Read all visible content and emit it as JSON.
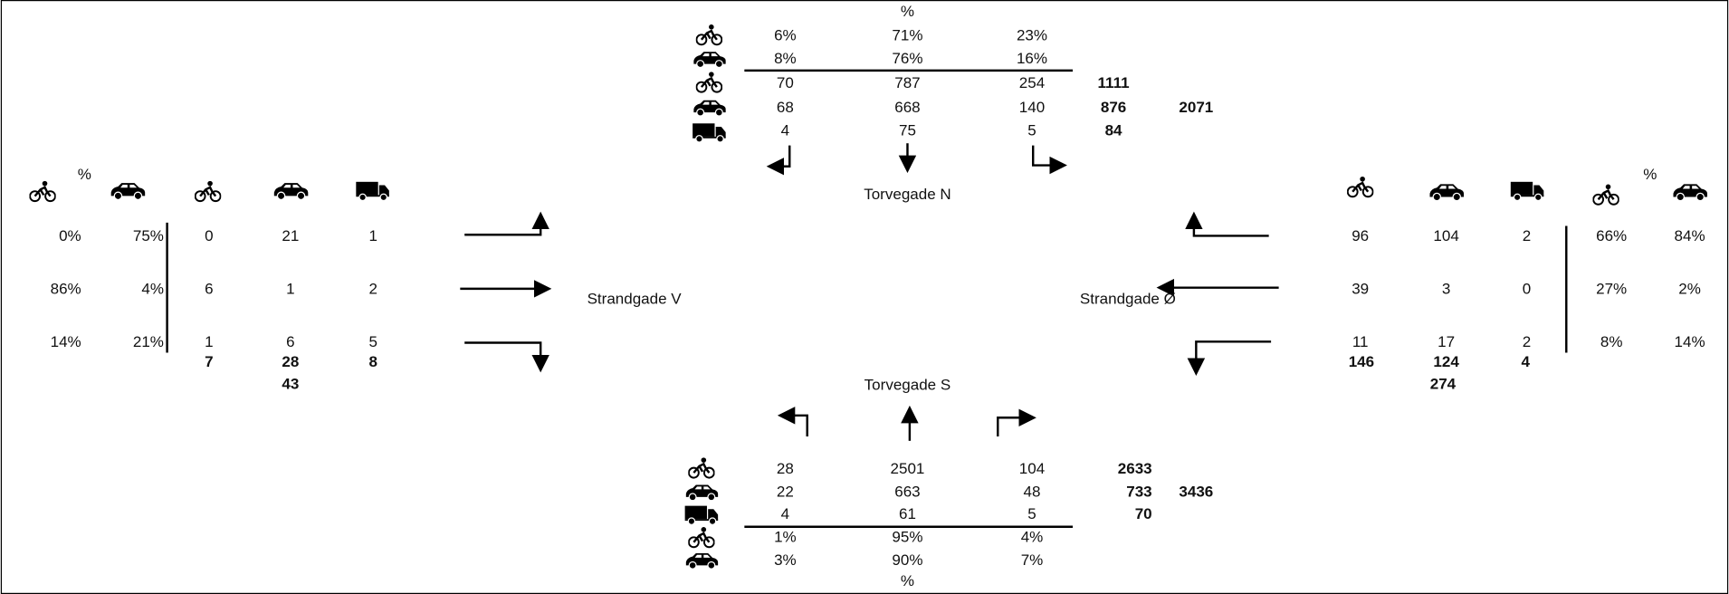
{
  "north": {
    "label": "Torvegade N",
    "pct_label": "%",
    "pct": {
      "bike": [
        "6%",
        "71%",
        "23%"
      ],
      "car": [
        "8%",
        "76%",
        "16%"
      ]
    },
    "counts": {
      "bike": [
        70,
        787,
        254
      ],
      "car": [
        68,
        668,
        140
      ],
      "truck": [
        4,
        75,
        5
      ]
    },
    "totals": {
      "bike": 1111,
      "car": 876,
      "truck": 84
    },
    "total": 2071
  },
  "west": {
    "label": "Strandgade V",
    "pct_label": "%",
    "rows": [
      {
        "bike_pct": "0%",
        "car_pct": "75%",
        "counts": [
          0,
          21,
          1
        ]
      },
      {
        "bike_pct": "86%",
        "car_pct": "4%",
        "counts": [
          6,
          1,
          2
        ]
      },
      {
        "bike_pct": "14%",
        "car_pct": "21%",
        "counts": [
          1,
          6,
          5
        ]
      }
    ],
    "totals": [
      7,
      28,
      8
    ],
    "total": 43
  },
  "east": {
    "label": "Strandgade Ø",
    "pct_label": "%",
    "rows": [
      {
        "counts": [
          96,
          104,
          2
        ],
        "bike_pct": "66%",
        "car_pct": "84%"
      },
      {
        "counts": [
          39,
          3,
          0
        ],
        "bike_pct": "27%",
        "car_pct": "2%"
      },
      {
        "counts": [
          11,
          17,
          2
        ],
        "bike_pct": "8%",
        "car_pct": "14%"
      }
    ],
    "totals": [
      146,
      124,
      4
    ],
    "total": 274
  },
  "south": {
    "label": "Torvegade S",
    "pct_label": "%",
    "counts": {
      "bike": [
        28,
        2501,
        104
      ],
      "car": [
        22,
        663,
        48
      ],
      "truck": [
        4,
        61,
        5
      ]
    },
    "totals": {
      "bike": 2633,
      "car": 733,
      "truck": 70
    },
    "total": 3436,
    "pct": {
      "bike": [
        "1%",
        "95%",
        "4%"
      ],
      "car": [
        "3%",
        "90%",
        "7%"
      ]
    }
  }
}
